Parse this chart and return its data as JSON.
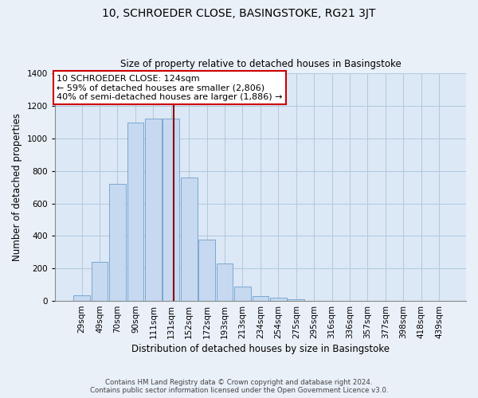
{
  "title1": "10, SCHROEDER CLOSE, BASINGSTOKE, RG21 3JT",
  "title2": "Size of property relative to detached houses in Basingstoke",
  "xlabel": "Distribution of detached houses by size in Basingstoke",
  "ylabel": "Number of detached properties",
  "bar_labels": [
    "29sqm",
    "49sqm",
    "70sqm",
    "90sqm",
    "111sqm",
    "131sqm",
    "152sqm",
    "172sqm",
    "193sqm",
    "213sqm",
    "234sqm",
    "254sqm",
    "275sqm",
    "295sqm",
    "316sqm",
    "336sqm",
    "357sqm",
    "377sqm",
    "398sqm",
    "418sqm",
    "439sqm"
  ],
  "bar_values": [
    35,
    240,
    720,
    1100,
    1120,
    1120,
    760,
    380,
    230,
    90,
    30,
    20,
    10,
    0,
    0,
    0,
    0,
    0,
    0,
    0,
    0
  ],
  "bar_color": "#c6d9f0",
  "bar_edge_color": "#7aa8d0",
  "property_line_idx": 5.15,
  "property_line_label": "10 SCHROEDER CLOSE: 124sqm",
  "annotation_line1": "← 59% of detached houses are smaller (2,806)",
  "annotation_line2": "40% of semi-detached houses are larger (1,886) →",
  "box_color": "#ffffff",
  "box_edge_color": "#cc0000",
  "line_color": "#8b0000",
  "ylim": [
    0,
    1400
  ],
  "yticks": [
    0,
    200,
    400,
    600,
    800,
    1000,
    1200,
    1400
  ],
  "footer1": "Contains HM Land Registry data © Crown copyright and database right 2024.",
  "footer2": "Contains public sector information licensed under the Open Government Licence v3.0.",
  "bg_color": "#eaf0f8",
  "plot_bg_color": "#dce8f5",
  "grid_color": "#b0c8e0"
}
